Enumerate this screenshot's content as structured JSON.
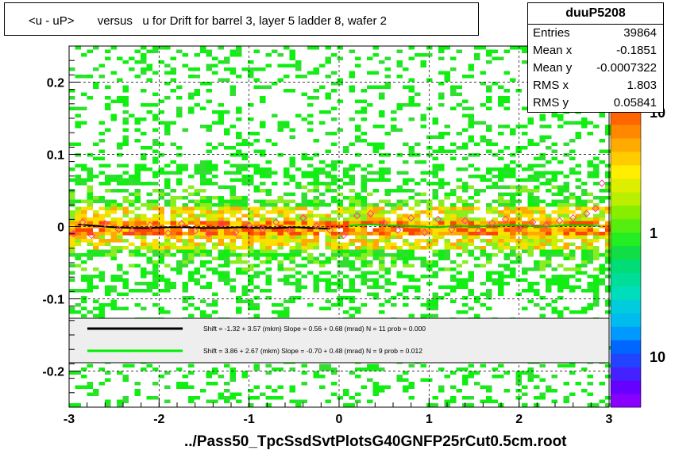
{
  "title": "<u - uP>       versus   u for Drift for barrel 3, layer 5 ladder 8, wafer 2",
  "stats": {
    "name": "duuP5208",
    "rows": [
      {
        "key": "Entries",
        "value": "39864"
      },
      {
        "key": "Mean x",
        "value": "-0.1851"
      },
      {
        "key": "Mean y",
        "value": "-0.0007322"
      },
      {
        "key": "RMS x",
        "value": "1.803"
      },
      {
        "key": "RMS y",
        "value": "0.05841"
      }
    ]
  },
  "footer": "../Pass50_TpcSsdSvtPlotsG40GNFP25rCut0.5cm.root",
  "legend": [
    {
      "text": "Shift =    -1.32 + 3.57 (mkm) Slope =     0.56 + 0.68 (mrad)  N = 11 prob = 0.000",
      "color": "#000000"
    },
    {
      "text": "Shift =     3.86 + 2.67 (mkm) Slope =    -0.70 + 0.48 (mrad)  N = 9 prob = 0.012",
      "color": "#00ee00"
    }
  ],
  "chart_data": {
    "type": "heatmap",
    "xlim": [
      -3,
      3
    ],
    "ylim": [
      -0.25,
      0.25
    ],
    "x_ticks": [
      "-3",
      "-2",
      "-1",
      "0",
      "1",
      "2",
      "3"
    ],
    "y_ticks": [
      "-0.2",
      "-0.1",
      "0",
      "0.1",
      "0.2"
    ],
    "z_scale": "log",
    "z_ticks": [
      "10",
      "1",
      "10"
    ],
    "grid": true,
    "profile_black": {
      "x": [
        -2.9,
        -2.7,
        -2.5,
        -2.3,
        -2.1,
        -1.9,
        -1.7,
        -1.5,
        -1.3,
        -1.1,
        -0.9,
        -0.7,
        -0.5,
        -0.3,
        -0.1
      ],
      "y": [
        0.003,
        0.001,
        -0.001,
        -0.002,
        -0.002,
        -0.001,
        -0.001,
        -0.002,
        -0.002,
        -0.001,
        -0.002,
        -0.002,
        -0.001,
        -0.002,
        -0.003
      ]
    },
    "profile_green": {
      "x": [
        0.1,
        0.3,
        0.5,
        0.7,
        0.9,
        1.1,
        1.3,
        1.5,
        1.7,
        1.9,
        2.1,
        2.3,
        2.5,
        2.7,
        2.9
      ],
      "y": [
        0.001,
        0.003,
        0.002,
        0.001,
        0.0,
        -0.001,
        0.001,
        0.0,
        0.001,
        0.002,
        0.001,
        0.0,
        0.002,
        0.002,
        0.001
      ]
    },
    "markers": {
      "x": [
        -2.95,
        -2.85,
        -2.75,
        -2.6,
        -2.45,
        -2.3,
        -2.1,
        -1.9,
        -1.75,
        -1.6,
        -1.45,
        -1.3,
        -1.15,
        -1.0,
        -0.85,
        -0.7,
        -0.55,
        -0.4,
        -0.25,
        -0.1,
        0.05,
        0.2,
        0.35,
        0.5,
        0.65,
        0.8,
        0.95,
        1.1,
        1.25,
        1.4,
        1.55,
        1.7,
        1.85,
        2.0,
        2.15,
        2.3,
        2.45,
        2.6,
        2.75,
        2.85,
        2.92
      ],
      "y": [
        -0.01,
        0.006,
        -0.012,
        0.004,
        -0.004,
        -0.006,
        0.002,
        -0.009,
        0.004,
        -0.006,
        -0.01,
        0.004,
        -0.008,
        0.002,
        -0.004,
        0.006,
        -0.006,
        0.012,
        0.001,
        -0.005,
        -0.012,
        0.015,
        0.018,
        0.005,
        -0.005,
        0.012,
        -0.008,
        0.01,
        -0.004,
        0.008,
        -0.006,
        0.005,
        0.01,
        -0.003,
        0.006,
        0.002,
        0.008,
        0.012,
        0.018,
        0.025,
        0.06
      ]
    }
  }
}
